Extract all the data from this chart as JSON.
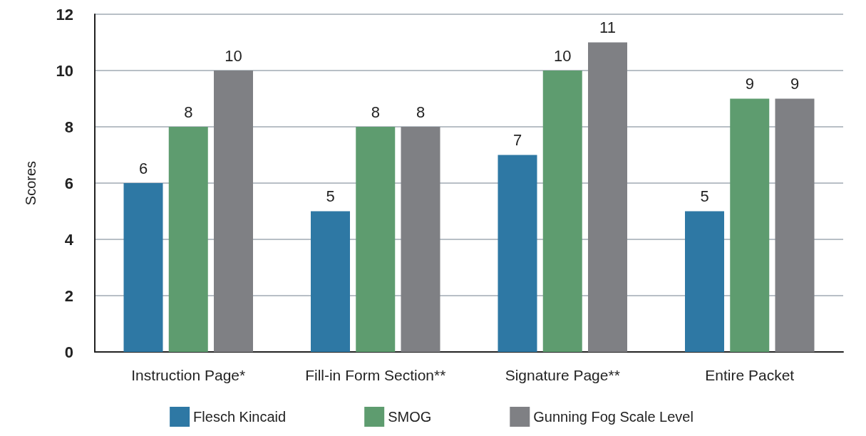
{
  "chart_data": {
    "type": "bar",
    "ylabel": "Scores",
    "categories": [
      "Instruction Page*",
      "Fill-in Form Section**",
      "Signature Page**",
      "Entire Packet"
    ],
    "series": [
      {
        "name": "Flesch Kincaid",
        "color": "#2e78a4",
        "values": [
          6,
          5,
          7,
          5
        ]
      },
      {
        "name": "SMOG",
        "color": "#5e9c6f",
        "values": [
          8,
          8,
          10,
          9
        ]
      },
      {
        "name": "Gunning Fog Scale Level",
        "color": "#7f8084",
        "values": [
          10,
          8,
          11,
          9
        ]
      }
    ],
    "ylim": [
      0,
      12
    ],
    "yticks": [
      0,
      2,
      4,
      6,
      8,
      10,
      12
    ],
    "grid": "y",
    "legend": "bottom",
    "data_labels": true
  }
}
